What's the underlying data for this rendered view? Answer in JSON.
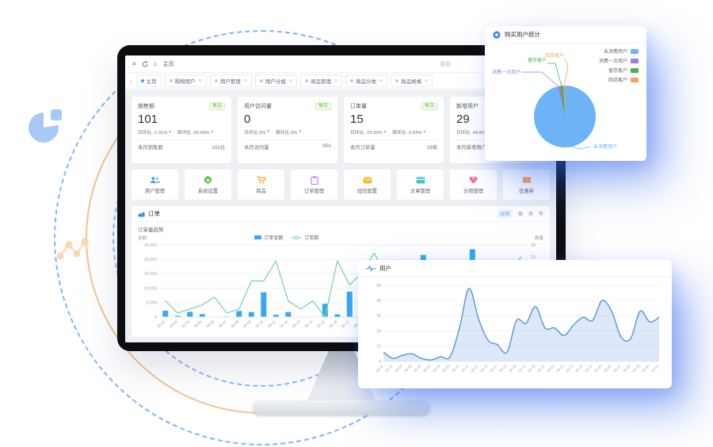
{
  "colors": {
    "primary": "#409eff",
    "bar": "#38a7f5",
    "line": "#74d49e",
    "area_line": "#5494db",
    "area_fill": "rgba(98,155,222,0.22)",
    "badge_green": "#67c23a",
    "up_green": "#67c23a",
    "down_red": "#f56c6c",
    "card_shadow_blue": "#2d64eb",
    "pie_blue": "#6db3f7",
    "pie_purple": "#9a7fe8",
    "pie_green": "#4caf50",
    "pie_orange": "#f2a654"
  },
  "topbar": {
    "breadcrumb": "主页",
    "search": "搜索..."
  },
  "tabs": [
    {
      "label": "主页",
      "active": true
    },
    {
      "label": "购物用户",
      "active": false
    },
    {
      "label": "用户管理",
      "active": false
    },
    {
      "label": "用户分组",
      "active": false
    },
    {
      "label": "商品管理",
      "active": false
    },
    {
      "label": "商品分类",
      "active": false
    },
    {
      "label": "商品规格",
      "active": false
    }
  ],
  "stat_cards": [
    {
      "title": "销售额",
      "badge": "每日",
      "value": "101",
      "compares": [
        {
          "label": "日环比",
          "value": "-1.01%",
          "dir": "up"
        },
        {
          "label": "周环比",
          "value": "-50.69%",
          "dir": "up"
        }
      ],
      "footer_label": "本月销售额",
      "footer_value": "101元"
    },
    {
      "title": "用户访问量",
      "badge": "每日",
      "value": "0",
      "compares": [
        {
          "label": "日环比",
          "value": "0%",
          "dir": "down"
        },
        {
          "label": "周环比",
          "value": "0%",
          "dir": "down"
        }
      ],
      "footer_label": "本月访问量",
      "footer_value": "0Pv"
    },
    {
      "title": "订单量",
      "badge": "每日",
      "value": "15",
      "compares": [
        {
          "label": "日环比",
          "value": "-73.33%",
          "dir": "up"
        },
        {
          "label": "周环比",
          "value": "-2.63%",
          "dir": "up"
        }
      ],
      "footer_label": "本月订单量",
      "footer_value": "19单"
    },
    {
      "title": "新增用户",
      "badge": "每日",
      "value": "29",
      "compares": [
        {
          "label": "日环比",
          "value": "-44.82%",
          "dir": "up"
        }
      ],
      "footer_label": "本月新增用户",
      "footer_value": ""
    }
  ],
  "quick_links": [
    {
      "key": "users",
      "label": "用户管理",
      "icon": "users-icon",
      "color": "#4aa3f5"
    },
    {
      "key": "settings",
      "label": "系统设置",
      "icon": "gear-icon",
      "color": "#67c23a"
    },
    {
      "key": "goods",
      "label": "商品",
      "icon": "cart-icon",
      "color": "#ff9800"
    },
    {
      "key": "orders",
      "label": "订单管理",
      "icon": "clipboard-icon",
      "color": "#b07ce8"
    },
    {
      "key": "sms",
      "label": "短信配置",
      "icon": "envelope-icon",
      "color": "#f7ba2a"
    },
    {
      "key": "articles",
      "label": "文章管理",
      "icon": "article-icon",
      "color": "#3cc5c5"
    },
    {
      "key": "distribution",
      "label": "分销管理",
      "icon": "gem-icon",
      "color": "#f56ca0"
    },
    {
      "key": "coupon",
      "label": "优惠券",
      "icon": "coupon-icon",
      "color": "#ff9f43"
    }
  ],
  "order_panel": {
    "title": "订单",
    "filters": [
      "30天",
      "周",
      "月",
      "年"
    ],
    "active_filter": "30天",
    "subtitle": "订单量趋势",
    "left_axis": "金额",
    "right_axis": "数量",
    "legend": [
      {
        "label": "订单金额",
        "color": "#38a7f5"
      },
      {
        "label": "订单数",
        "color": "#74d49e"
      }
    ]
  },
  "pie_card": {
    "title": "购买用户统计",
    "legend": [
      {
        "label": "未消费用户",
        "color": "#6db3f7"
      },
      {
        "label": "消费一次用户",
        "color": "#9a7fe8"
      },
      {
        "label": "留存客户",
        "color": "#4caf50"
      },
      {
        "label": "回流客户",
        "color": "#f2a654"
      }
    ],
    "callouts": [
      "消费一次用户",
      "留存客户",
      "回流客户",
      "未消费用户"
    ]
  },
  "user_card": {
    "title": "用户"
  },
  "chart_data": [
    {
      "type": "bar",
      "title": "订单量趋势",
      "categories": [
        "06-02",
        "06-03",
        "06-04",
        "06-05",
        "06-06",
        "06-07",
        "06-08",
        "06-09",
        "06-10",
        "06-11",
        "06-12",
        "06-13",
        "06-14",
        "06-15",
        "06-16",
        "06-17",
        "06-18",
        "06-19",
        "06-20",
        "06-21",
        "06-22",
        "06-23",
        "06-24",
        "06-25",
        "06-26",
        "06-27",
        "06-28",
        "06-29",
        "06-30",
        "07-01"
      ],
      "series": [
        {
          "name": "订单金额",
          "type": "bar",
          "axis": "left",
          "color": "#38a7f5",
          "values": [
            2200,
            400,
            1800,
            1000,
            0,
            200,
            2100,
            1700,
            8600,
            800,
            1700,
            100,
            0,
            4600,
            900,
            8800,
            400,
            300,
            1200,
            500,
            600,
            21500,
            800,
            400,
            700,
            23500,
            600,
            300,
            900,
            1500
          ]
        },
        {
          "name": "订单数",
          "type": "line",
          "axis": "right",
          "color": "#74d49e",
          "values": [
            4,
            1,
            2,
            3,
            5,
            1,
            2,
            9,
            9,
            14,
            4,
            2,
            4,
            0,
            14,
            8,
            11,
            16,
            10,
            5,
            3,
            6,
            1,
            0,
            5,
            7,
            13,
            9,
            12,
            15
          ]
        }
      ],
      "ylabel": "金额",
      "y2label": "数量",
      "ylim": [
        0,
        25000
      ],
      "y2lim": [
        0,
        18
      ],
      "yticks": [
        0,
        5000,
        10000,
        15000,
        20000,
        25000
      ],
      "y2ticks": [
        0,
        3,
        6,
        9,
        12,
        15,
        18
      ],
      "legend_position": "top-center",
      "grid": true
    },
    {
      "type": "pie",
      "title": "购买用户统计",
      "labels": [
        "未消费用户",
        "消费一次用户",
        "留存客户",
        "回流客户"
      ],
      "values": [
        96.5,
        1.2,
        1.5,
        0.8
      ],
      "colors": [
        "#6db3f7",
        "#9a7fe8",
        "#4caf50",
        "#f2a654"
      ],
      "legend_position": "right"
    },
    {
      "type": "area",
      "title": "用户",
      "categories": [
        "06-02",
        "06-03",
        "06-04",
        "06-05",
        "06-06",
        "06-07",
        "06-08",
        "06-09",
        "06-10",
        "06-11",
        "06-12",
        "06-13",
        "06-14",
        "06-15",
        "06-16",
        "06-17",
        "06-18",
        "06-19",
        "06-20",
        "06-21",
        "06-22",
        "06-23",
        "06-24",
        "06-25",
        "06-26",
        "06-27",
        "06-28",
        "06-29",
        "06-30",
        "07-01"
      ],
      "values": [
        6,
        2,
        4,
        5,
        2,
        1,
        3,
        3,
        22,
        48,
        28,
        14,
        11,
        6,
        27,
        25,
        36,
        22,
        22,
        17,
        24,
        29,
        27,
        40,
        33,
        16,
        15,
        33,
        26,
        29
      ],
      "ylim": [
        0,
        50
      ],
      "yticks": [
        0,
        10,
        20,
        30,
        40,
        50
      ],
      "line_color": "#5494db",
      "fill_color": "rgba(98,155,222,0.22)",
      "grid": true
    }
  ]
}
